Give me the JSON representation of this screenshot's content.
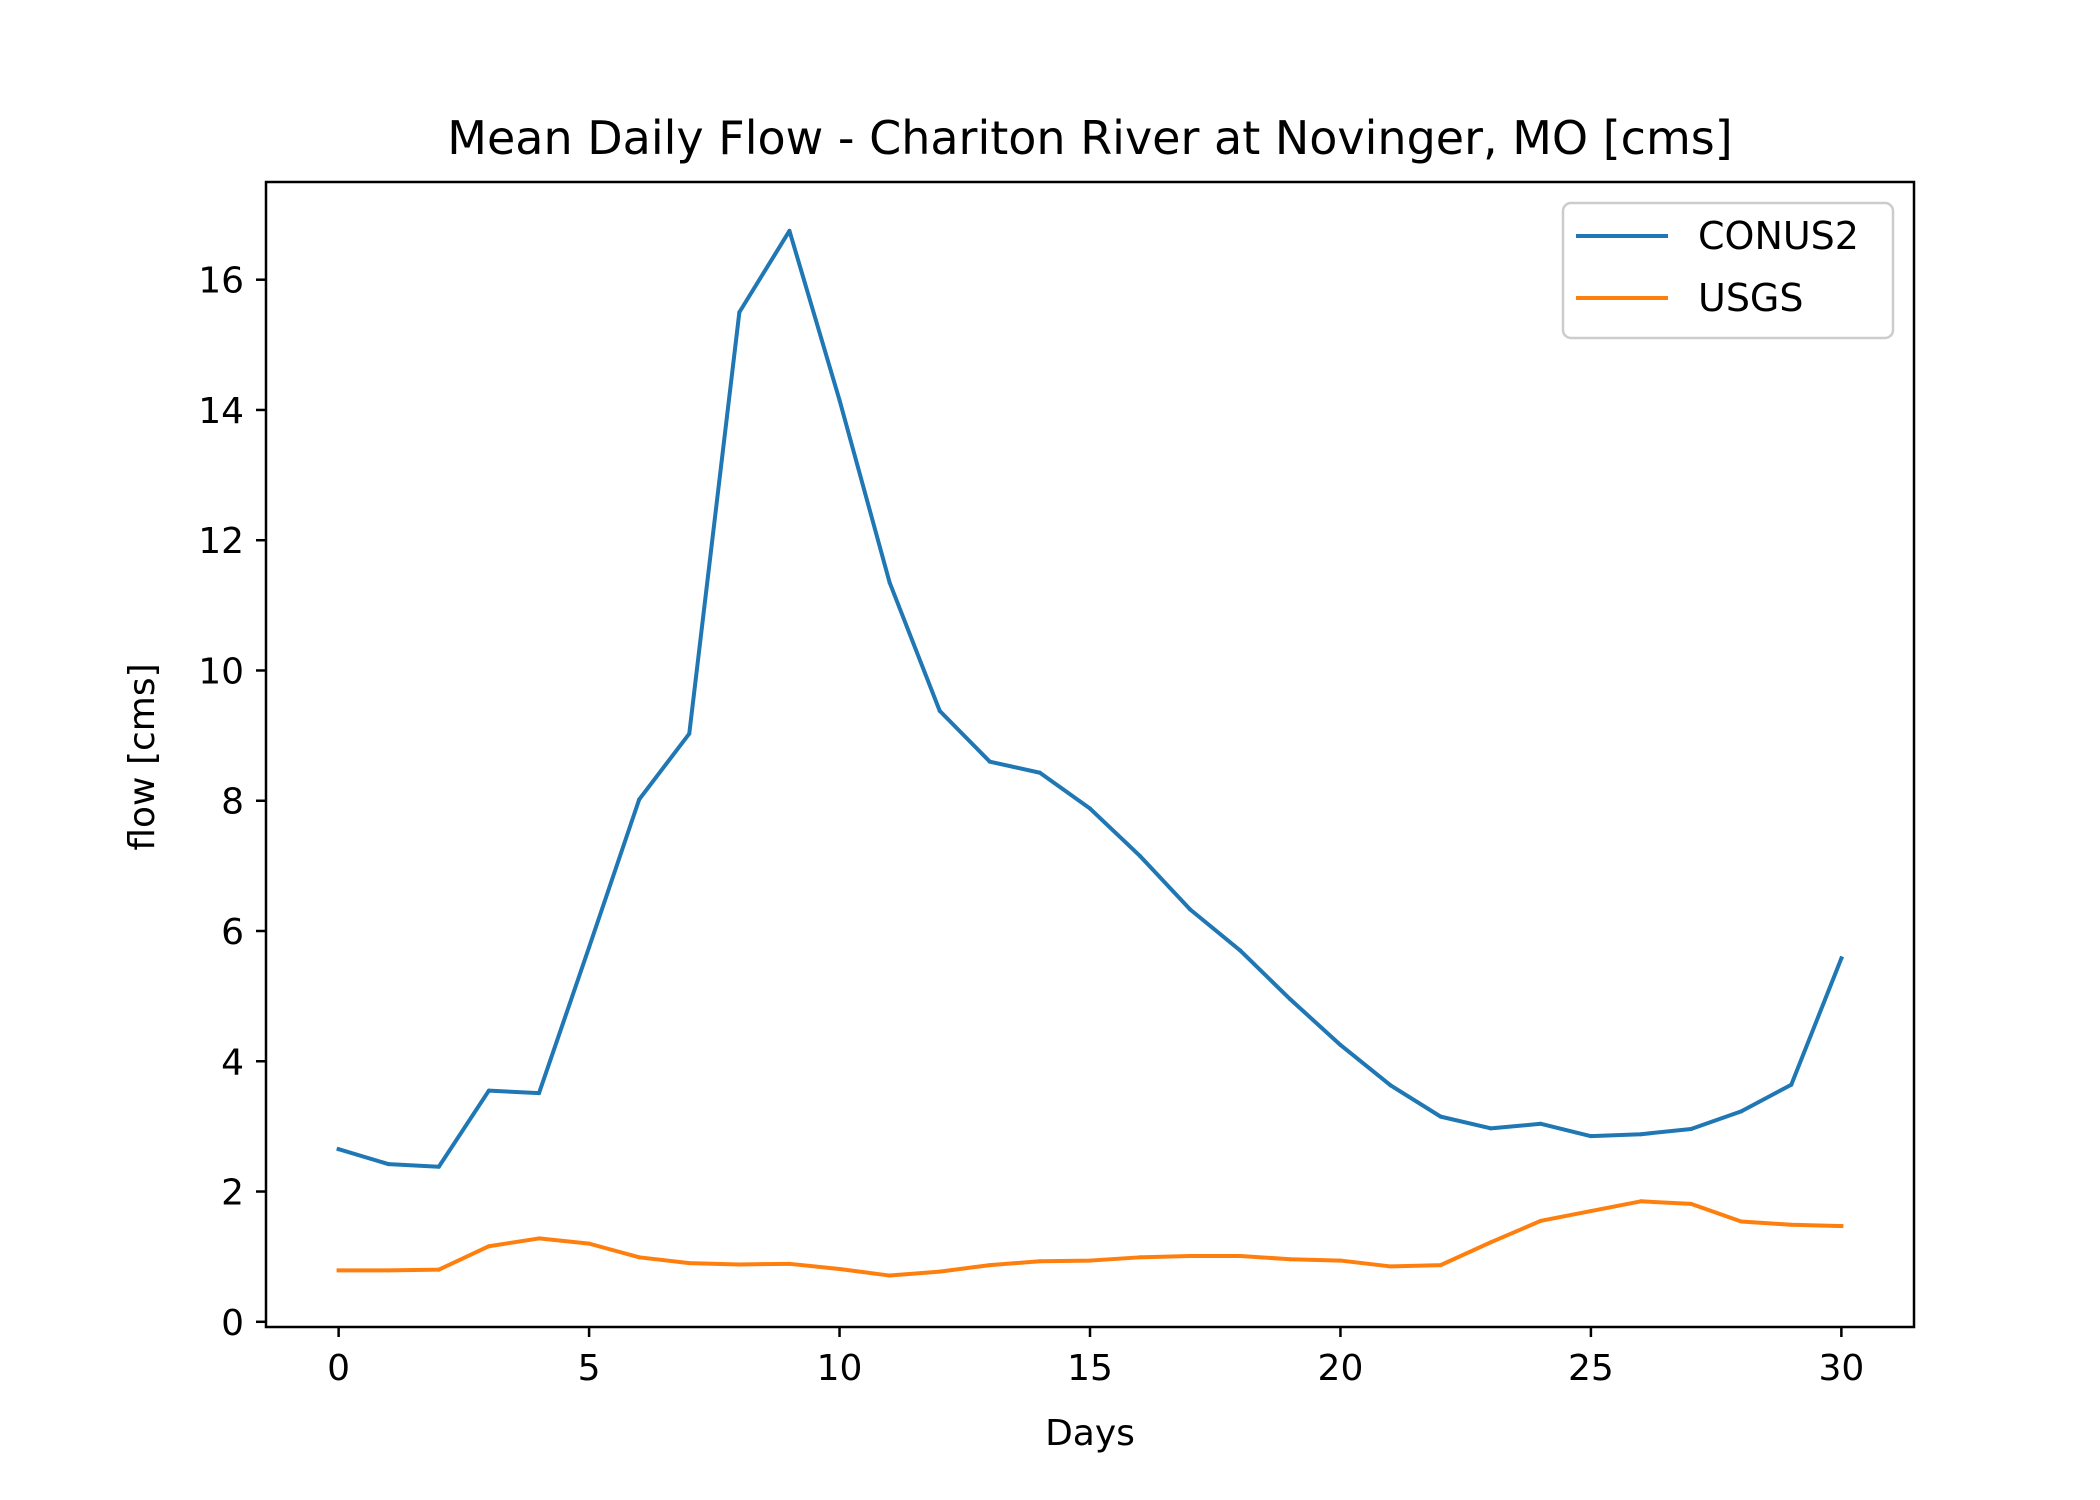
{
  "chart_data": {
    "type": "line",
    "title": "Mean Daily Flow - Chariton River at Novinger, MO [cms]",
    "xlabel": "Days",
    "ylabel": "flow [cms]",
    "xlim": [
      -1.45,
      31.45
    ],
    "ylim": [
      -0.08,
      17.5
    ],
    "xticks": [
      0,
      5,
      10,
      15,
      20,
      25,
      30
    ],
    "xtick_labels": [
      "0",
      "5",
      "10",
      "15",
      "20",
      "25",
      "30"
    ],
    "yticks": [
      0,
      2,
      4,
      6,
      8,
      10,
      12,
      14,
      16
    ],
    "ytick_labels": [
      "0",
      "2",
      "4",
      "6",
      "8",
      "10",
      "12",
      "14",
      "16"
    ],
    "grid": false,
    "legend_position": "top-right",
    "x": [
      0,
      1,
      2,
      3,
      4,
      5,
      6,
      7,
      8,
      9,
      10,
      11,
      12,
      13,
      14,
      15,
      16,
      17,
      18,
      19,
      20,
      21,
      22,
      23,
      24,
      25,
      26,
      27,
      28,
      29,
      30
    ],
    "series": [
      {
        "name": "CONUS2",
        "color": "#1f77b4",
        "values": [
          2.65,
          2.42,
          2.38,
          3.55,
          3.51,
          5.75,
          8.02,
          9.03,
          15.5,
          16.75,
          14.15,
          11.35,
          9.38,
          8.6,
          8.43,
          7.88,
          7.15,
          6.33,
          5.7,
          4.95,
          4.25,
          3.63,
          3.15,
          2.97,
          3.04,
          2.85,
          2.88,
          2.96,
          3.23,
          3.64,
          5.58
        ]
      },
      {
        "name": "USGS",
        "color": "#ff7f0e",
        "values": [
          0.79,
          0.79,
          0.8,
          1.16,
          1.28,
          1.2,
          0.99,
          0.9,
          0.88,
          0.89,
          0.81,
          0.71,
          0.77,
          0.87,
          0.93,
          0.94,
          0.99,
          1.01,
          1.01,
          0.96,
          0.94,
          0.85,
          0.87,
          1.22,
          1.55,
          1.7,
          1.85,
          1.81,
          1.54,
          1.49,
          1.47
        ]
      }
    ]
  }
}
